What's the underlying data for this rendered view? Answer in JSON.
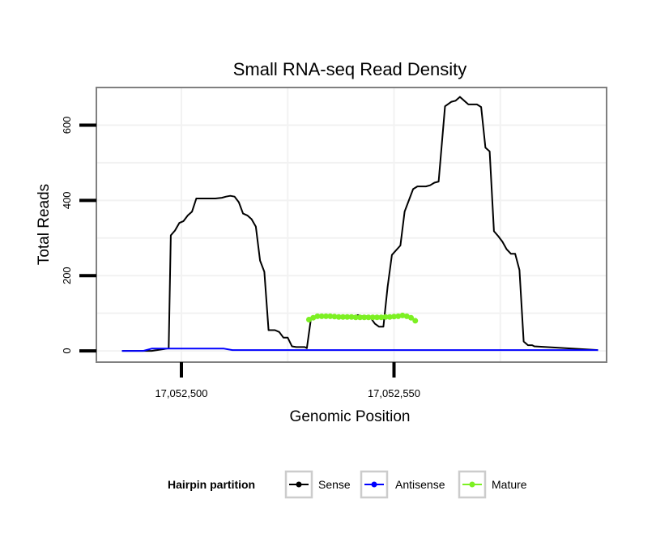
{
  "chart_data": {
    "type": "line",
    "title": "Small RNA-seq Read Density",
    "xlabel": "Genomic Position",
    "ylabel": "Total Reads",
    "xlim": [
      17052480,
      17052600
    ],
    "ylim": [
      -30,
      700
    ],
    "x_ticks": [
      17052500,
      17052550
    ],
    "x_tick_labels": [
      "17,052,500",
      "17,052,550"
    ],
    "y_ticks": [
      0,
      200,
      400,
      600
    ],
    "y_tick_labels": [
      "0",
      "200",
      "400",
      "600"
    ],
    "grid": true,
    "legend": {
      "title": "Hairpin partition",
      "placement": "bottom",
      "entries": [
        "Sense",
        "Antisense",
        "Mature"
      ]
    },
    "series": [
      {
        "name": "Sense",
        "color": "#000000",
        "x": [
          17052486,
          17052493,
          17052496,
          17052497,
          17052497.5,
          17052498.5,
          17052499.5,
          17052500.5,
          17052501.5,
          17052502.5,
          17052503.5,
          17052506.5,
          17052508,
          17052509.5,
          17052510.5,
          17052511.5,
          17052512.5,
          17052513.5,
          17052514.5,
          17052515.5,
          17052516.5,
          17052517.5,
          17052518.5,
          17052519.5,
          17052520.5,
          17052522,
          17052523,
          17052524,
          17052525,
          17052526,
          17052527,
          17052528,
          17052529,
          17052529.5,
          17052530.5,
          17052531.5,
          17052532.5,
          17052533.5,
          17052534.5,
          17052535.5,
          17052536.5,
          17052538.5,
          17052539.5,
          17052540.5,
          17052541.5,
          17052542.5,
          17052543.5,
          17052544.5,
          17052545.5,
          17052546.5,
          17052547.5,
          17052548.5,
          17052549.5,
          17052551.5,
          17052552.5,
          17052554.5,
          17052555.5,
          17052556.5,
          17052557.5,
          17052558.5,
          17052559.5,
          17052560.5,
          17052562,
          17052563.5,
          17052564.5,
          17052565.5,
          17052566.5,
          17052567.5,
          17052568.5,
          17052569.5,
          17052570.5,
          17052571.5,
          17052572.5,
          17052573.5,
          17052574.5,
          17052575.5,
          17052576.5,
          17052577.5,
          17052578.5,
          17052579.5,
          17052580.5,
          17052581.5,
          17052582.5,
          17052583,
          17052598
        ],
        "values": [
          0,
          0,
          5,
          7,
          307,
          320,
          340,
          345,
          360,
          370,
          405,
          405,
          405,
          407,
          410,
          412,
          410,
          395,
          365,
          360,
          350,
          330,
          240,
          210,
          55,
          55,
          50,
          35,
          35,
          12,
          10,
          10,
          10,
          7,
          88,
          92,
          92,
          92,
          92,
          90,
          90,
          90,
          90,
          92,
          95,
          92,
          92,
          88,
          72,
          64,
          64,
          170,
          255,
          280,
          370,
          430,
          437,
          437,
          437,
          440,
          447,
          450,
          650,
          662,
          665,
          675,
          665,
          655,
          655,
          655,
          648,
          540,
          530,
          318,
          305,
          290,
          270,
          258,
          258,
          215,
          25,
          15,
          15,
          12,
          2
        ]
      },
      {
        "name": "Antisense",
        "color": "#0000ff",
        "x": [
          17052486,
          17052491,
          17052493,
          17052505,
          17052507,
          17052510,
          17052512,
          17052598
        ],
        "values": [
          0,
          0,
          6,
          6,
          6,
          6,
          2,
          2
        ]
      },
      {
        "name": "Mature",
        "color": "#7cf022",
        "x": [
          17052530,
          17052531,
          17052532,
          17052533,
          17052534,
          17052535,
          17052536,
          17052537,
          17052538,
          17052539,
          17052540,
          17052541,
          17052542,
          17052543,
          17052544,
          17052545,
          17052546,
          17052547,
          17052548,
          17052549,
          17052550,
          17052551,
          17052552,
          17052553,
          17052554,
          17052555
        ],
        "values": [
          83,
          88,
          92,
          92,
          92,
          92,
          91,
          90,
          90,
          90,
          90,
          89,
          89,
          89,
          89,
          89,
          89,
          89,
          90,
          90,
          91,
          92,
          94,
          92,
          88,
          80
        ]
      }
    ]
  }
}
